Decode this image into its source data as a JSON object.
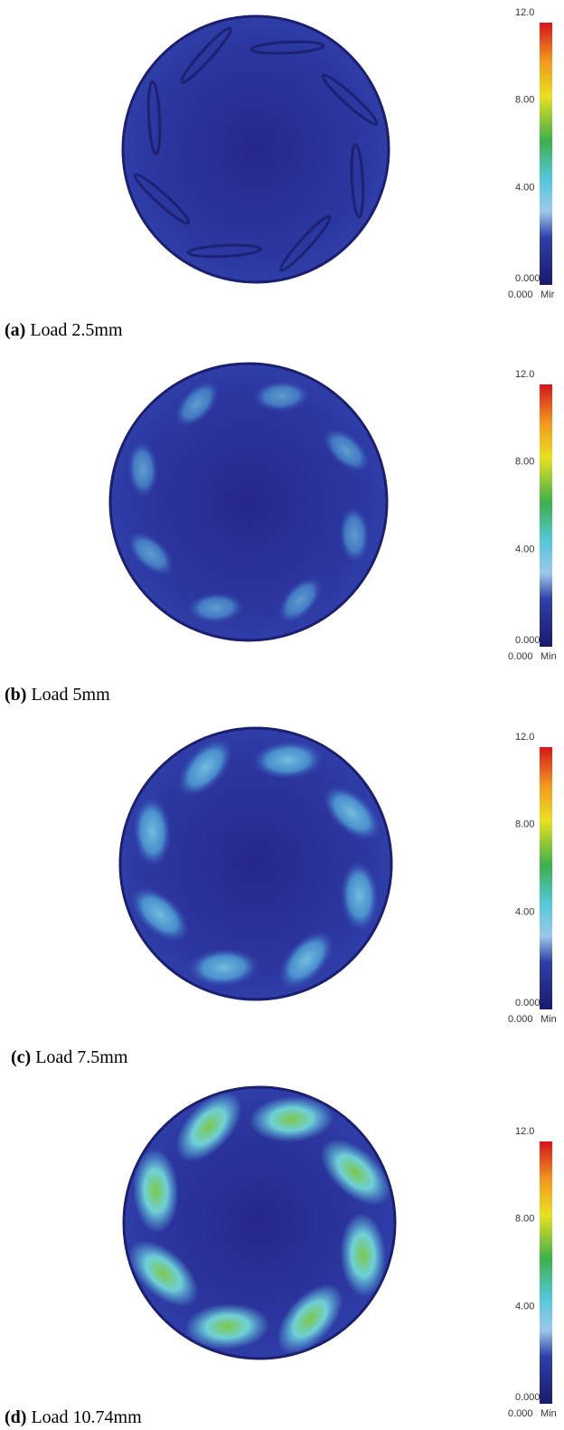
{
  "panels": [
    {
      "label": "(a)",
      "caption": "Load 2.5mm",
      "colorbar": {
        "ticks": [
          "12.0",
          "8.00",
          "4.00",
          "0.000"
        ],
        "min_value": "0.000",
        "min_label": "Mir"
      }
    },
    {
      "label": "(b)",
      "caption": "Load 5mm",
      "colorbar": {
        "ticks": [
          "12.0",
          "8.00",
          "4.00",
          "0.000"
        ],
        "min_value": "0.000",
        "min_label": "Min"
      }
    },
    {
      "label": "(c)",
      "caption": "Load 7.5mm",
      "colorbar": {
        "ticks": [
          "12.0",
          "8.00",
          "4.00",
          "0.000"
        ],
        "min_value": "0.000",
        "min_label": "Min"
      }
    },
    {
      "label": "(d)",
      "caption": "Load 10.74mm",
      "colorbar": {
        "ticks": [
          "12.0",
          "8.00",
          "4.00",
          "0.000"
        ],
        "min_value": "0.000",
        "min_label": "Min"
      }
    }
  ]
}
